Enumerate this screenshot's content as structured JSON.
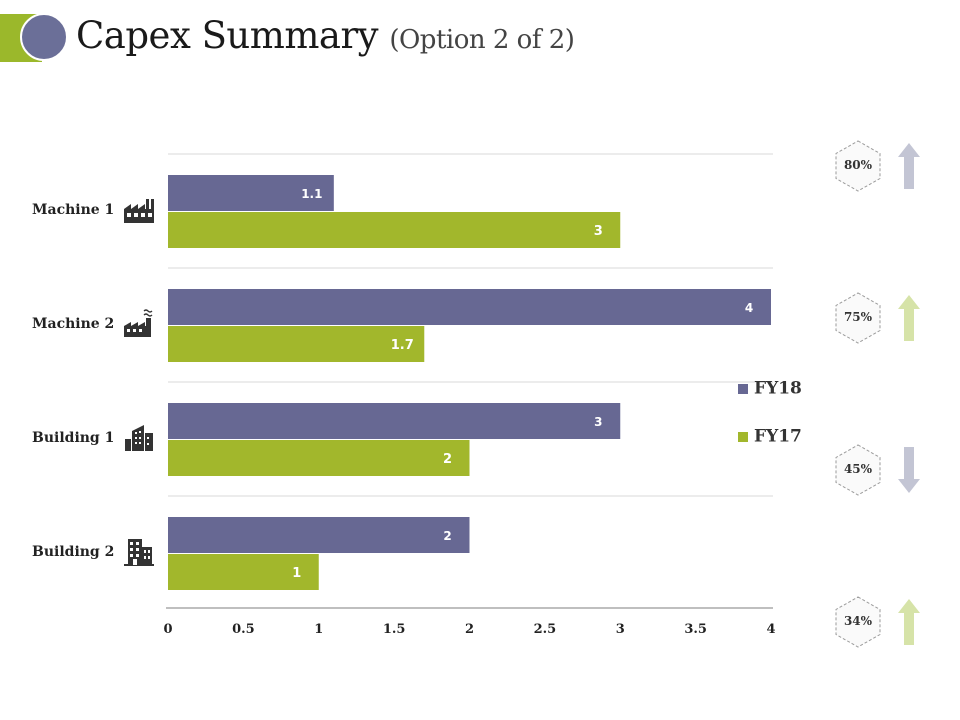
{
  "slide": {
    "title": "Capex Summary",
    "subtitle": "(Option 2 of 2)",
    "accent_colors": {
      "green": "#9bb82b",
      "purple": "#6b6f98"
    }
  },
  "chart_data": {
    "type": "bar",
    "orientation": "horizontal",
    "categories": [
      "Machine 1",
      "Machine 2",
      "Building 1",
      "Building 2"
    ],
    "series": [
      {
        "name": "FY18",
        "values": [
          1.1,
          4,
          3,
          2
        ],
        "labels": [
          "1.1",
          "4",
          "3",
          "2"
        ],
        "color": "#676893"
      },
      {
        "name": "FY17",
        "values": [
          3,
          1.7,
          2,
          1
        ],
        "labels": [
          "3",
          "1.7",
          "2",
          "1"
        ],
        "color": "#a2b72c"
      }
    ],
    "xlim": [
      0,
      4
    ],
    "xticks": [
      "0",
      "0.5",
      "1",
      "1.5",
      "2",
      "2.5",
      "3",
      "3.5",
      "4"
    ],
    "grid": true,
    "legend_position": "right"
  },
  "category_icons": [
    "factory-icon",
    "factory-smoke-icon",
    "office-building-icon",
    "apartment-building-icon"
  ],
  "indicators": [
    {
      "value": "80%",
      "direction": "up",
      "color": "#c3c5d4"
    },
    {
      "value": "75%",
      "direction": "up",
      "color": "#d6e3a8"
    },
    {
      "value": "45%",
      "direction": "down",
      "color": "#c3c5d4"
    },
    {
      "value": "34%",
      "direction": "up",
      "color": "#d6e3a8"
    }
  ]
}
